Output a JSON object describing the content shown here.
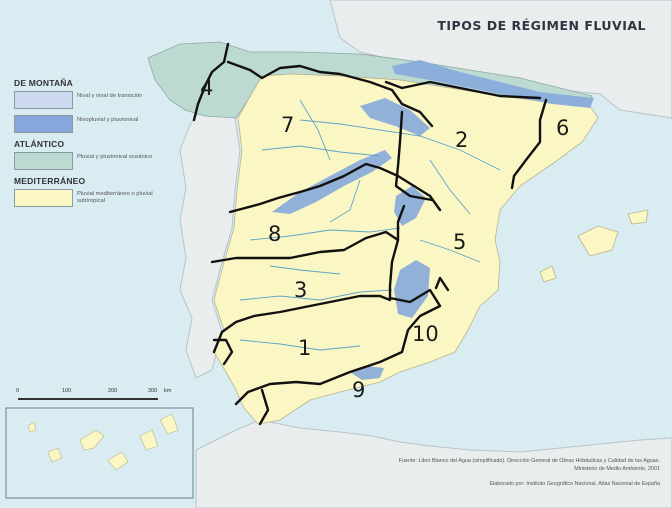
{
  "title": "TIPOS DE RÉGIMEN FLUVIAL",
  "legend": {
    "groups": [
      {
        "name": "DE MONTAÑA",
        "items": [
          {
            "label": "Nival y nival de transición",
            "color": "#cdd9f0"
          },
          {
            "label": "Nivopluvial y pluvionival",
            "color": "#86a8dc"
          }
        ]
      },
      {
        "name": "ATLÁNTICO",
        "items": [
          {
            "label": "Pluvial y pluvionival oceánico",
            "color": "#bcd9d2"
          }
        ]
      },
      {
        "name": "MEDITERRÁNEO",
        "items": [
          {
            "label": "Pluvial mediterráneo o pluvial subtropical",
            "color": "#fbf7c4"
          }
        ]
      }
    ]
  },
  "regions": [
    {
      "id": "4",
      "label": "4"
    },
    {
      "id": "7",
      "label": "7"
    },
    {
      "id": "2",
      "label": "2"
    },
    {
      "id": "6",
      "label": "6"
    },
    {
      "id": "8",
      "label": "8"
    },
    {
      "id": "5",
      "label": "5"
    },
    {
      "id": "3",
      "label": "3"
    },
    {
      "id": "1",
      "label": "1"
    },
    {
      "id": "10",
      "label": "10"
    },
    {
      "id": "9",
      "label": "9"
    }
  ],
  "scale": {
    "ticks": [
      "0",
      "100",
      "200",
      "300"
    ],
    "unit": "km"
  },
  "source": "Fuente: Libro Blanco del Agua (simplificado). Dirección General de Obras Hidráulicas y Calidad de las Aguas. Ministerio de Medio Ambiente, 2001",
  "credit": "Elaborado por: Instituto Geográfico Nacional. Atlas Nacional de España",
  "colors": {
    "sea": "#d9ecf2",
    "land_other": "#e9edee",
    "mediterranean": "#fbf7c4",
    "atlantic": "#bcd9d2",
    "nival": "#cdd9f0",
    "nivopluvial": "#86a8dc",
    "boundary": "#111111",
    "river": "#5fa3c8"
  }
}
